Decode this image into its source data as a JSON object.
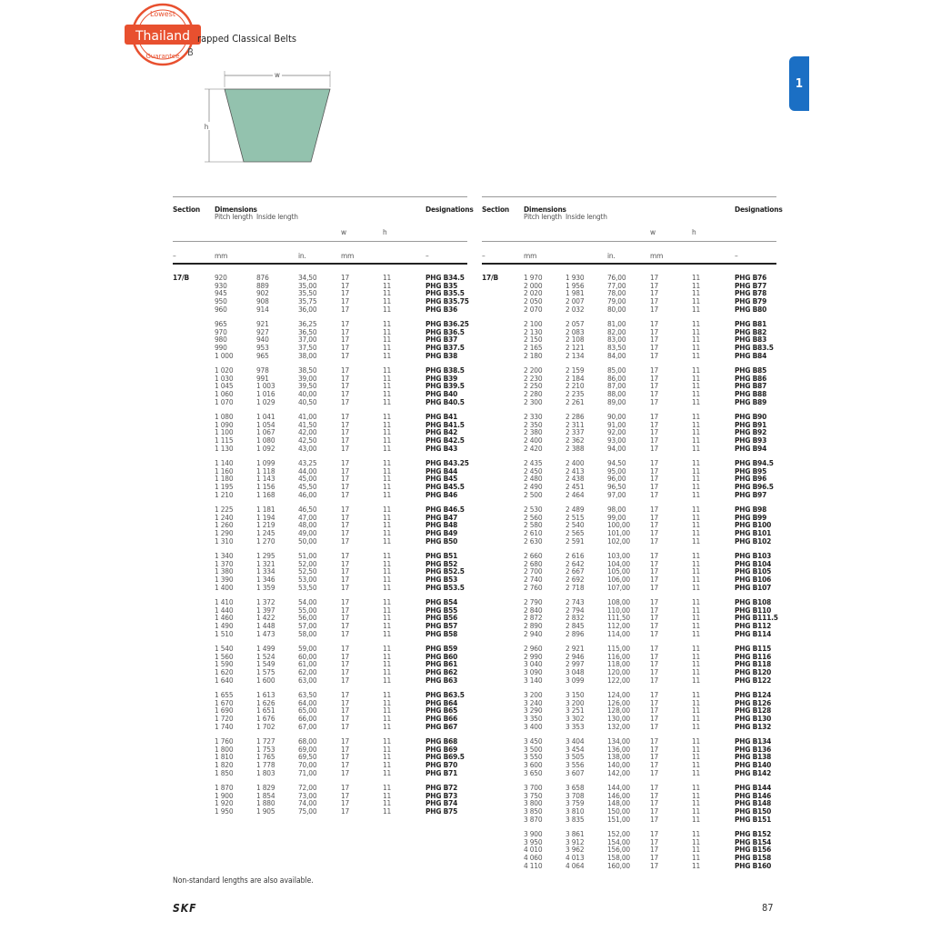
{
  "header": {
    "title": "rapped Classical Belts",
    "subtitle": "B",
    "stamp": {
      "top": "Lowest",
      "middle": "Thailand",
      "bottom": "Guarantee",
      "color": "#e8502f"
    }
  },
  "chapter_tab": {
    "label": "1",
    "color": "#1b6fc4"
  },
  "diagram": {
    "w_label": "w",
    "h_label": "h",
    "fill": "#93c2ae"
  },
  "table_headers": {
    "section": "Section",
    "dimensions": "Dimensions",
    "pitch_length": "Pitch length",
    "inside_length": "Inside length",
    "w": "w",
    "h": "h",
    "designations": "Designations",
    "unit_section": "–",
    "unit_mm": "mm",
    "unit_in": "in.",
    "unit_mm2": "mm",
    "unit_desig": "–"
  },
  "tables": [
    {
      "section": "17/B",
      "groups": [
        [
          [
            "920",
            "876",
            "34,50",
            "17",
            "11",
            "PHG B34.5"
          ],
          [
            "930",
            "889",
            "35,00",
            "17",
            "11",
            "PHG B35"
          ],
          [
            "945",
            "902",
            "35,50",
            "17",
            "11",
            "PHG B35.5"
          ],
          [
            "950",
            "908",
            "35,75",
            "17",
            "11",
            "PHG B35.75"
          ],
          [
            "960",
            "914",
            "36,00",
            "17",
            "11",
            "PHG B36"
          ]
        ],
        [
          [
            "965",
            "921",
            "36,25",
            "17",
            "11",
            "PHG B36.25"
          ],
          [
            "970",
            "927",
            "36,50",
            "17",
            "11",
            "PHG B36.5"
          ],
          [
            "980",
            "940",
            "37,00",
            "17",
            "11",
            "PHG B37"
          ],
          [
            "990",
            "953",
            "37,50",
            "17",
            "11",
            "PHG B37.5"
          ],
          [
            "1 000",
            "965",
            "38,00",
            "17",
            "11",
            "PHG B38"
          ]
        ],
        [
          [
            "1 020",
            "978",
            "38,50",
            "17",
            "11",
            "PHG B38.5"
          ],
          [
            "1 030",
            "991",
            "39,00",
            "17",
            "11",
            "PHG B39"
          ],
          [
            "1 045",
            "1 003",
            "39,50",
            "17",
            "11",
            "PHG B39.5"
          ],
          [
            "1 060",
            "1 016",
            "40,00",
            "17",
            "11",
            "PHG B40"
          ],
          [
            "1 070",
            "1 029",
            "40,50",
            "17",
            "11",
            "PHG B40.5"
          ]
        ],
        [
          [
            "1 080",
            "1 041",
            "41,00",
            "17",
            "11",
            "PHG B41"
          ],
          [
            "1 090",
            "1 054",
            "41,50",
            "17",
            "11",
            "PHG B41.5"
          ],
          [
            "1 100",
            "1 067",
            "42,00",
            "17",
            "11",
            "PHG B42"
          ],
          [
            "1 115",
            "1 080",
            "42,50",
            "17",
            "11",
            "PHG B42.5"
          ],
          [
            "1 130",
            "1 092",
            "43,00",
            "17",
            "11",
            "PHG B43"
          ]
        ],
        [
          [
            "1 140",
            "1 099",
            "43,25",
            "17",
            "11",
            "PHG B43.25"
          ],
          [
            "1 160",
            "1 118",
            "44,00",
            "17",
            "11",
            "PHG B44"
          ],
          [
            "1 180",
            "1 143",
            "45,00",
            "17",
            "11",
            "PHG B45"
          ],
          [
            "1 195",
            "1 156",
            "45,50",
            "17",
            "11",
            "PHG B45.5"
          ],
          [
            "1 210",
            "1 168",
            "46,00",
            "17",
            "11",
            "PHG B46"
          ]
        ],
        [
          [
            "1 225",
            "1 181",
            "46,50",
            "17",
            "11",
            "PHG B46.5"
          ],
          [
            "1 240",
            "1 194",
            "47,00",
            "17",
            "11",
            "PHG B47"
          ],
          [
            "1 260",
            "1 219",
            "48,00",
            "17",
            "11",
            "PHG B48"
          ],
          [
            "1 290",
            "1 245",
            "49,00",
            "17",
            "11",
            "PHG B49"
          ],
          [
            "1 310",
            "1 270",
            "50,00",
            "17",
            "11",
            "PHG B50"
          ]
        ],
        [
          [
            "1 340",
            "1 295",
            "51,00",
            "17",
            "11",
            "PHG B51"
          ],
          [
            "1 370",
            "1 321",
            "52,00",
            "17",
            "11",
            "PHG B52"
          ],
          [
            "1 380",
            "1 334",
            "52,50",
            "17",
            "11",
            "PHG B52.5"
          ],
          [
            "1 390",
            "1 346",
            "53,00",
            "17",
            "11",
            "PHG B53"
          ],
          [
            "1 400",
            "1 359",
            "53,50",
            "17",
            "11",
            "PHG B53.5"
          ]
        ],
        [
          [
            "1 410",
            "1 372",
            "54,00",
            "17",
            "11",
            "PHG B54"
          ],
          [
            "1 440",
            "1 397",
            "55,00",
            "17",
            "11",
            "PHG B55"
          ],
          [
            "1 460",
            "1 422",
            "56,00",
            "17",
            "11",
            "PHG B56"
          ],
          [
            "1 490",
            "1 448",
            "57,00",
            "17",
            "11",
            "PHG B57"
          ],
          [
            "1 510",
            "1 473",
            "58,00",
            "17",
            "11",
            "PHG B58"
          ]
        ],
        [
          [
            "1 540",
            "1 499",
            "59,00",
            "17",
            "11",
            "PHG B59"
          ],
          [
            "1 560",
            "1 524",
            "60,00",
            "17",
            "11",
            "PHG B60"
          ],
          [
            "1 590",
            "1 549",
            "61,00",
            "17",
            "11",
            "PHG B61"
          ],
          [
            "1 620",
            "1 575",
            "62,00",
            "17",
            "11",
            "PHG B62"
          ],
          [
            "1 640",
            "1 600",
            "63,00",
            "17",
            "11",
            "PHG B63"
          ]
        ],
        [
          [
            "1 655",
            "1 613",
            "63,50",
            "17",
            "11",
            "PHG B63.5"
          ],
          [
            "1 670",
            "1 626",
            "64,00",
            "17",
            "11",
            "PHG B64"
          ],
          [
            "1 690",
            "1 651",
            "65,00",
            "17",
            "11",
            "PHG B65"
          ],
          [
            "1 720",
            "1 676",
            "66,00",
            "17",
            "11",
            "PHG B66"
          ],
          [
            "1 740",
            "1 702",
            "67,00",
            "17",
            "11",
            "PHG B67"
          ]
        ],
        [
          [
            "1 760",
            "1 727",
            "68,00",
            "17",
            "11",
            "PHG B68"
          ],
          [
            "1 800",
            "1 753",
            "69,00",
            "17",
            "11",
            "PHG B69"
          ],
          [
            "1 810",
            "1 765",
            "69,50",
            "17",
            "11",
            "PHG B69.5"
          ],
          [
            "1 820",
            "1 778",
            "70,00",
            "17",
            "11",
            "PHG B70"
          ],
          [
            "1 850",
            "1 803",
            "71,00",
            "17",
            "11",
            "PHG B71"
          ]
        ],
        [
          [
            "1 870",
            "1 829",
            "72,00",
            "17",
            "11",
            "PHG B72"
          ],
          [
            "1 900",
            "1 854",
            "73,00",
            "17",
            "11",
            "PHG B73"
          ],
          [
            "1 920",
            "1 880",
            "74,00",
            "17",
            "11",
            "PHG B74"
          ],
          [
            "1 950",
            "1 905",
            "75,00",
            "17",
            "11",
            "PHG B75"
          ]
        ]
      ]
    },
    {
      "section": "17/B",
      "groups": [
        [
          [
            "1 970",
            "1 930",
            "76,00",
            "17",
            "11",
            "PHG B76"
          ],
          [
            "2 000",
            "1 956",
            "77,00",
            "17",
            "11",
            "PHG B77"
          ],
          [
            "2 020",
            "1 981",
            "78,00",
            "17",
            "11",
            "PHG B78"
          ],
          [
            "2 050",
            "2 007",
            "79,00",
            "17",
            "11",
            "PHG B79"
          ],
          [
            "2 070",
            "2 032",
            "80,00",
            "17",
            "11",
            "PHG B80"
          ]
        ],
        [
          [
            "2 100",
            "2 057",
            "81,00",
            "17",
            "11",
            "PHG B81"
          ],
          [
            "2 130",
            "2 083",
            "82,00",
            "17",
            "11",
            "PHG B82"
          ],
          [
            "2 150",
            "2 108",
            "83,00",
            "17",
            "11",
            "PHG B83"
          ],
          [
            "2 165",
            "2 121",
            "83,50",
            "17",
            "11",
            "PHG B83.5"
          ],
          [
            "2 180",
            "2 134",
            "84,00",
            "17",
            "11",
            "PHG B84"
          ]
        ],
        [
          [
            "2 200",
            "2 159",
            "85,00",
            "17",
            "11",
            "PHG B85"
          ],
          [
            "2 230",
            "2 184",
            "86,00",
            "17",
            "11",
            "PHG B86"
          ],
          [
            "2 250",
            "2 210",
            "87,00",
            "17",
            "11",
            "PHG B87"
          ],
          [
            "2 280",
            "2 235",
            "88,00",
            "17",
            "11",
            "PHG B88"
          ],
          [
            "2 300",
            "2 261",
            "89,00",
            "17",
            "11",
            "PHG B89"
          ]
        ],
        [
          [
            "2 330",
            "2 286",
            "90,00",
            "17",
            "11",
            "PHG B90"
          ],
          [
            "2 350",
            "2 311",
            "91,00",
            "17",
            "11",
            "PHG B91"
          ],
          [
            "2 380",
            "2 337",
            "92,00",
            "17",
            "11",
            "PHG B92"
          ],
          [
            "2 400",
            "2 362",
            "93,00",
            "17",
            "11",
            "PHG B93"
          ],
          [
            "2 420",
            "2 388",
            "94,00",
            "17",
            "11",
            "PHG B94"
          ]
        ],
        [
          [
            "2 435",
            "2 400",
            "94,50",
            "17",
            "11",
            "PHG B94.5"
          ],
          [
            "2 450",
            "2 413",
            "95,00",
            "17",
            "11",
            "PHG B95"
          ],
          [
            "2 480",
            "2 438",
            "96,00",
            "17",
            "11",
            "PHG B96"
          ],
          [
            "2 490",
            "2 451",
            "96,50",
            "17",
            "11",
            "PHG B96.5"
          ],
          [
            "2 500",
            "2 464",
            "97,00",
            "17",
            "11",
            "PHG B97"
          ]
        ],
        [
          [
            "2 530",
            "2 489",
            "98,00",
            "17",
            "11",
            "PHG B98"
          ],
          [
            "2 560",
            "2 515",
            "99,00",
            "17",
            "11",
            "PHG B99"
          ],
          [
            "2 580",
            "2 540",
            "100,00",
            "17",
            "11",
            "PHG B100"
          ],
          [
            "2 610",
            "2 565",
            "101,00",
            "17",
            "11",
            "PHG B101"
          ],
          [
            "2 630",
            "2 591",
            "102,00",
            "17",
            "11",
            "PHG B102"
          ]
        ],
        [
          [
            "2 660",
            "2 616",
            "103,00",
            "17",
            "11",
            "PHG B103"
          ],
          [
            "2 680",
            "2 642",
            "104,00",
            "17",
            "11",
            "PHG B104"
          ],
          [
            "2 700",
            "2 667",
            "105,00",
            "17",
            "11",
            "PHG B105"
          ],
          [
            "2 740",
            "2 692",
            "106,00",
            "17",
            "11",
            "PHG B106"
          ],
          [
            "2 760",
            "2 718",
            "107,00",
            "17",
            "11",
            "PHG B107"
          ]
        ],
        [
          [
            "2 790",
            "2 743",
            "108,00",
            "17",
            "11",
            "PHG B108"
          ],
          [
            "2 840",
            "2 794",
            "110,00",
            "17",
            "11",
            "PHG B110"
          ],
          [
            "2 872",
            "2 832",
            "111,50",
            "17",
            "11",
            "PHG B111.5"
          ],
          [
            "2 890",
            "2 845",
            "112,00",
            "17",
            "11",
            "PHG B112"
          ],
          [
            "2 940",
            "2 896",
            "114,00",
            "17",
            "11",
            "PHG B114"
          ]
        ],
        [
          [
            "2 960",
            "2 921",
            "115,00",
            "17",
            "11",
            "PHG B115"
          ],
          [
            "2 990",
            "2 946",
            "116,00",
            "17",
            "11",
            "PHG B116"
          ],
          [
            "3 040",
            "2 997",
            "118,00",
            "17",
            "11",
            "PHG B118"
          ],
          [
            "3 090",
            "3 048",
            "120,00",
            "17",
            "11",
            "PHG B120"
          ],
          [
            "3 140",
            "3 099",
            "122,00",
            "17",
            "11",
            "PHG B122"
          ]
        ],
        [
          [
            "3 200",
            "3 150",
            "124,00",
            "17",
            "11",
            "PHG B124"
          ],
          [
            "3 240",
            "3 200",
            "126,00",
            "17",
            "11",
            "PHG B126"
          ],
          [
            "3 290",
            "3 251",
            "128,00",
            "17",
            "11",
            "PHG B128"
          ],
          [
            "3 350",
            "3 302",
            "130,00",
            "17",
            "11",
            "PHG B130"
          ],
          [
            "3 400",
            "3 353",
            "132,00",
            "17",
            "11",
            "PHG B132"
          ]
        ],
        [
          [
            "3 450",
            "3 404",
            "134,00",
            "17",
            "11",
            "PHG B134"
          ],
          [
            "3 500",
            "3 454",
            "136,00",
            "17",
            "11",
            "PHG B136"
          ],
          [
            "3 550",
            "3 505",
            "138,00",
            "17",
            "11",
            "PHG B138"
          ],
          [
            "3 600",
            "3 556",
            "140,00",
            "17",
            "11",
            "PHG B140"
          ],
          [
            "3 650",
            "3 607",
            "142,00",
            "17",
            "11",
            "PHG B142"
          ]
        ],
        [
          [
            "3 700",
            "3 658",
            "144,00",
            "17",
            "11",
            "PHG B144"
          ],
          [
            "3 750",
            "3 708",
            "146,00",
            "17",
            "11",
            "PHG B146"
          ],
          [
            "3 800",
            "3 759",
            "148,00",
            "17",
            "11",
            "PHG B148"
          ],
          [
            "3 850",
            "3 810",
            "150,00",
            "17",
            "11",
            "PHG B150"
          ],
          [
            "3 870",
            "3 835",
            "151,00",
            "17",
            "11",
            "PHG B151"
          ]
        ],
        [
          [
            "3 900",
            "3 861",
            "152,00",
            "17",
            "11",
            "PHG B152"
          ],
          [
            "3 950",
            "3 912",
            "154,00",
            "17",
            "11",
            "PHG B154"
          ],
          [
            "4 010",
            "3 962",
            "156,00",
            "17",
            "11",
            "PHG B156"
          ],
          [
            "4 060",
            "4 013",
            "158,00",
            "17",
            "11",
            "PHG B158"
          ],
          [
            "4 110",
            "4 064",
            "160,00",
            "17",
            "11",
            "PHG B160"
          ]
        ]
      ]
    }
  ],
  "footer": {
    "note": "Non-standard lengths are also available.",
    "logo": "SKF",
    "page_number": "87"
  }
}
